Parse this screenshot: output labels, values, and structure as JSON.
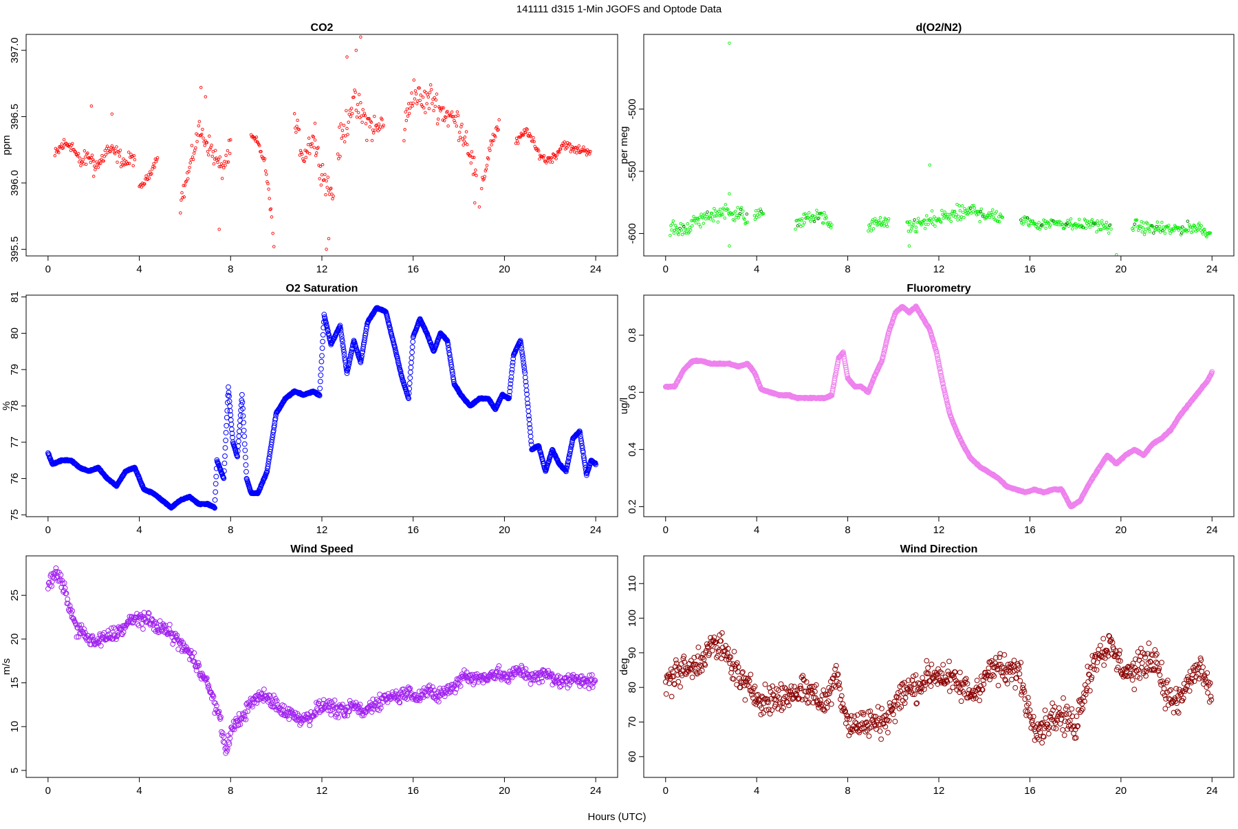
{
  "figure": {
    "title": "141111   d315   1-Min  JGOFS and Optode Data",
    "xlabel": "Hours (UTC)"
  },
  "chart_data": [
    {
      "type": "scatter",
      "title": "CO2",
      "ylabel": "ppm",
      "color": "#ff0000",
      "marker": "small",
      "xlim": [
        -0.96,
        24.96
      ],
      "ylim": [
        395.45,
        397.12
      ],
      "xticks": [
        0,
        4,
        8,
        12,
        16,
        20,
        24
      ],
      "yticks": [
        395.5,
        396.0,
        396.5,
        397.0
      ],
      "ytick_labels": [
        "395.5",
        "396.0",
        "396.5",
        "397.0"
      ],
      "segments": [
        {
          "x": [
            0.3,
            0.6,
            1.0,
            1.4,
            1.8,
            2.2,
            2.6,
            3.0,
            3.4,
            3.8
          ],
          "y": [
            396.2,
            396.28,
            396.3,
            396.15,
            396.2,
            396.13,
            396.25,
            396.22,
            396.15,
            396.2
          ],
          "noise": 0.09,
          "spikes": [
            [
              1.9,
              396.58
            ],
            [
              2.8,
              396.52
            ],
            [
              2.0,
              396.05
            ]
          ]
        },
        {
          "x": [
            4.0,
            4.4,
            4.8
          ],
          "y": [
            395.95,
            396.05,
            396.2
          ],
          "noise": 0.04
        },
        {
          "x": [
            5.8,
            6.2,
            6.6,
            7.0,
            7.3,
            7.6,
            8.0
          ],
          "y": [
            395.85,
            396.1,
            396.4,
            396.3,
            396.2,
            396.1,
            396.25
          ],
          "noise": 0.12,
          "spikes": [
            [
              6.7,
              396.72
            ],
            [
              7.5,
              395.65
            ],
            [
              6.9,
              396.65
            ]
          ]
        },
        {
          "x": [
            8.9,
            9.2,
            9.5,
            9.8
          ],
          "y": [
            396.35,
            396.3,
            396.15,
            395.75
          ],
          "noise": 0.05,
          "spikes": [
            [
              9.9,
              395.52
            ],
            [
              9.85,
              395.62
            ]
          ]
        },
        {
          "x": [
            10.8,
            11.2,
            11.6,
            11.9,
            12.2,
            12.5
          ],
          "y": [
            396.45,
            396.2,
            396.35,
            396.15,
            396.0,
            395.9
          ],
          "noise": 0.14,
          "spikes": [
            [
              12.2,
              395.5
            ],
            [
              12.3,
              395.58
            ],
            [
              11.7,
              396.45
            ]
          ]
        },
        {
          "x": [
            12.7,
            13.0,
            13.3,
            13.6,
            14.0,
            14.4,
            14.7
          ],
          "y": [
            396.25,
            396.4,
            396.6,
            396.55,
            396.45,
            396.4,
            396.45
          ],
          "noise": 0.18,
          "spikes": [
            [
              13.5,
              397.0
            ],
            [
              13.7,
              397.1
            ],
            [
              13.1,
              396.95
            ]
          ]
        },
        {
          "x": [
            15.6,
            16.0,
            16.4,
            16.8,
            17.2,
            17.6,
            18.0,
            18.4,
            18.8
          ],
          "y": [
            396.4,
            396.7,
            396.6,
            396.65,
            396.55,
            396.5,
            396.45,
            396.3,
            396.0
          ],
          "noise": 0.16,
          "spikes": [
            [
              18.9,
              395.82
            ],
            [
              18.7,
              395.85
            ]
          ]
        },
        {
          "x": [
            19.0,
            19.4,
            19.8
          ],
          "y": [
            395.95,
            396.3,
            396.45
          ],
          "noise": 0.08
        },
        {
          "x": [
            20.5,
            21.0,
            21.4,
            21.8,
            22.2,
            22.6,
            23.0,
            23.4,
            23.8
          ],
          "y": [
            396.3,
            396.4,
            396.25,
            396.17,
            396.2,
            396.3,
            396.25,
            396.25,
            396.24
          ],
          "noise": 0.05
        }
      ]
    },
    {
      "type": "scatter",
      "title": "d(O2/N2)",
      "ylabel": "per meg",
      "color": "#00ee00",
      "marker": "small",
      "darkcolor": "#006400",
      "xlim": [
        -0.96,
        24.96
      ],
      "ylim": [
        -618,
        -440
      ],
      "xticks": [
        0,
        4,
        8,
        12,
        16,
        20,
        24
      ],
      "yticks": [
        -600,
        -550,
        -500
      ],
      "ytick_labels": [
        "-600",
        "-550",
        "-500"
      ],
      "segments": [
        {
          "x": [
            0.2,
            0.8,
            1.4,
            2.0,
            2.6,
            3.2,
            3.6
          ],
          "y": [
            -598,
            -596,
            -590,
            -585,
            -582,
            -584,
            -588
          ],
          "noise": 9,
          "spikes": [
            [
              2.8,
              -447
            ],
            [
              2.8,
              -568
            ],
            [
              2.8,
              -610
            ]
          ]
        },
        {
          "x": [
            3.9,
            4.3
          ],
          "y": [
            -586,
            -583
          ],
          "noise": 7
        },
        {
          "x": [
            5.7,
            6.2,
            6.8,
            7.3
          ],
          "y": [
            -592,
            -588,
            -585,
            -595
          ],
          "noise": 8
        },
        {
          "x": [
            8.9,
            9.3,
            9.8
          ],
          "y": [
            -596,
            -590,
            -593
          ],
          "noise": 7
        },
        {
          "x": [
            10.6,
            11.2,
            11.8,
            12.4,
            13.0,
            13.6,
            14.2,
            14.8
          ],
          "y": [
            -596,
            -592,
            -590,
            -586,
            -584,
            -582,
            -585,
            -586
          ],
          "noise": 10,
          "spikes": [
            [
              10.7,
              -610
            ],
            [
              11.6,
              -545
            ]
          ]
        },
        {
          "x": [
            15.6,
            16.4,
            17.2,
            18.0,
            18.8,
            19.6
          ],
          "y": [
            -590,
            -592,
            -591,
            -593,
            -592,
            -597
          ],
          "noise": 7,
          "spikes": [
            [
              19.8,
              -617
            ]
          ]
        },
        {
          "x": [
            20.5,
            21.2,
            22.0,
            22.8,
            23.5,
            23.95
          ],
          "y": [
            -593,
            -596,
            -597,
            -596,
            -595,
            -601
          ],
          "noise": 7
        }
      ]
    },
    {
      "type": "line-scatter",
      "title": "O2 Saturation",
      "ylabel": "%",
      "color": "#0000ff",
      "marker": "large",
      "xlim": [
        -0.96,
        24.96
      ],
      "ylim": [
        74.95,
        81.05
      ],
      "xticks": [
        0,
        4,
        8,
        12,
        16,
        20,
        24
      ],
      "yticks": [
        75,
        76,
        77,
        78,
        79,
        80,
        81
      ],
      "ytick_labels": [
        "75",
        "76",
        "77",
        "78",
        "79",
        "80",
        "81"
      ],
      "series": {
        "x": [
          0.0,
          0.2,
          0.6,
          1.0,
          1.4,
          1.8,
          2.2,
          2.6,
          3.0,
          3.4,
          3.8,
          4.2,
          4.6,
          5.0,
          5.4,
          5.8,
          6.2,
          6.6,
          7.0,
          7.3,
          7.4,
          7.7,
          7.9,
          8.1,
          8.3,
          8.5,
          8.7,
          8.9,
          9.2,
          9.6,
          10.0,
          10.4,
          10.8,
          11.2,
          11.6,
          11.9,
          12.1,
          12.4,
          12.8,
          13.1,
          13.4,
          13.7,
          14.0,
          14.4,
          14.8,
          15.2,
          15.5,
          15.8,
          16.0,
          16.3,
          16.6,
          16.9,
          17.2,
          17.5,
          17.8,
          18.1,
          18.5,
          18.9,
          19.3,
          19.6,
          19.9,
          20.2,
          20.4,
          20.7,
          20.9,
          21.2,
          21.5,
          21.8,
          22.1,
          22.4,
          22.7,
          23.0,
          23.3,
          23.6,
          23.8,
          24.0
        ],
        "y": [
          76.7,
          76.4,
          76.5,
          76.5,
          76.3,
          76.2,
          76.3,
          76.0,
          75.8,
          76.2,
          76.3,
          75.7,
          75.6,
          75.4,
          75.2,
          75.4,
          75.5,
          75.3,
          75.3,
          75.2,
          76.5,
          76.0,
          78.5,
          77.0,
          76.6,
          78.3,
          76.0,
          75.6,
          75.6,
          76.2,
          77.8,
          78.2,
          78.4,
          78.3,
          78.4,
          78.3,
          80.5,
          79.7,
          80.2,
          78.9,
          79.8,
          79.2,
          80.3,
          80.7,
          80.6,
          79.6,
          78.8,
          78.2,
          79.9,
          80.4,
          80.0,
          79.5,
          80.0,
          79.8,
          78.6,
          78.3,
          78.0,
          78.2,
          78.2,
          77.9,
          78.3,
          78.2,
          79.4,
          79.8,
          78.9,
          76.8,
          76.9,
          76.2,
          76.8,
          76.4,
          76.2,
          77.1,
          77.3,
          76.1,
          76.5,
          76.4
        ]
      }
    },
    {
      "type": "line-scatter",
      "title": "Fluorometry",
      "ylabel": "ug/l",
      "color": "#ee82ee",
      "marker": "large",
      "xlim": [
        -0.96,
        24.96
      ],
      "ylim": [
        0.165,
        0.94
      ],
      "xticks": [
        0,
        4,
        8,
        12,
        16,
        20,
        24
      ],
      "yticks": [
        0.2,
        0.4,
        0.6,
        0.8
      ],
      "ytick_labels": [
        "0.2",
        "0.4",
        "0.6",
        "0.8"
      ],
      "series": {
        "x": [
          0.0,
          0.4,
          0.8,
          1.2,
          1.6,
          2.0,
          2.4,
          2.8,
          3.2,
          3.6,
          3.9,
          4.2,
          4.6,
          5.0,
          5.4,
          5.8,
          6.2,
          6.6,
          7.0,
          7.3,
          7.6,
          7.8,
          8.0,
          8.3,
          8.6,
          8.9,
          9.2,
          9.5,
          9.8,
          10.1,
          10.4,
          10.7,
          11.0,
          11.3,
          11.6,
          11.9,
          12.2,
          12.5,
          12.8,
          13.1,
          13.4,
          13.8,
          14.2,
          14.6,
          15.0,
          15.4,
          15.8,
          16.2,
          16.6,
          17.0,
          17.4,
          17.8,
          18.2,
          18.6,
          19.0,
          19.4,
          19.8,
          20.2,
          20.6,
          21.0,
          21.4,
          21.8,
          22.2,
          22.6,
          23.0,
          23.4,
          23.8,
          24.0
        ],
        "y": [
          0.62,
          0.62,
          0.68,
          0.71,
          0.71,
          0.7,
          0.7,
          0.7,
          0.69,
          0.7,
          0.67,
          0.61,
          0.6,
          0.59,
          0.59,
          0.58,
          0.58,
          0.58,
          0.58,
          0.59,
          0.72,
          0.74,
          0.65,
          0.62,
          0.62,
          0.6,
          0.66,
          0.71,
          0.81,
          0.88,
          0.9,
          0.88,
          0.9,
          0.86,
          0.82,
          0.74,
          0.62,
          0.52,
          0.46,
          0.41,
          0.37,
          0.34,
          0.32,
          0.3,
          0.27,
          0.26,
          0.25,
          0.26,
          0.25,
          0.26,
          0.26,
          0.2,
          0.22,
          0.28,
          0.33,
          0.38,
          0.35,
          0.38,
          0.4,
          0.38,
          0.42,
          0.44,
          0.47,
          0.52,
          0.56,
          0.6,
          0.64,
          0.67
        ]
      }
    },
    {
      "type": "scatter",
      "title": "Wind Speed",
      "ylabel": "m/s",
      "color": "#a020f0",
      "marker": "large",
      "xlim": [
        -0.96,
        24.96
      ],
      "ylim": [
        4.2,
        29.5
      ],
      "xticks": [
        0,
        4,
        8,
        12,
        16,
        20,
        24
      ],
      "yticks": [
        5,
        10,
        15,
        20,
        25
      ],
      "ytick_labels": [
        "5",
        "10",
        "15",
        "20",
        "25"
      ],
      "series": {
        "x": [
          0.0,
          0.3,
          0.6,
          0.9,
          1.2,
          1.6,
          2.0,
          2.4,
          2.8,
          3.2,
          3.6,
          4.0,
          4.4,
          4.8,
          5.2,
          5.6,
          6.0,
          6.4,
          6.8,
          7.1,
          7.4,
          7.6,
          7.8,
          8.0,
          8.3,
          8.6,
          9.0,
          9.4,
          9.8,
          10.2,
          10.6,
          11.0,
          11.4,
          11.8,
          12.2,
          12.6,
          13.0,
          13.4,
          13.8,
          14.2,
          14.6,
          15.0,
          15.4,
          15.8,
          16.2,
          16.6,
          17.0,
          17.4,
          17.8,
          18.2,
          18.6,
          19.0,
          19.4,
          19.8,
          20.2,
          20.6,
          21.0,
          21.4,
          21.8,
          22.2,
          22.6,
          23.0,
          23.4,
          23.8,
          24.0
        ],
        "y": [
          26.0,
          27.5,
          26.5,
          24.0,
          21.5,
          20.5,
          19.5,
          20.0,
          20.5,
          21.0,
          22.0,
          22.5,
          22.0,
          21.5,
          21.0,
          20.0,
          19.0,
          17.5,
          16.0,
          14.0,
          12.0,
          10.0,
          7.0,
          9.5,
          10.5,
          11.5,
          13.0,
          13.5,
          13.0,
          12.0,
          11.5,
          11.0,
          11.0,
          12.0,
          12.5,
          12.0,
          11.5,
          12.5,
          11.5,
          12.5,
          13.0,
          13.5,
          13.5,
          14.0,
          13.5,
          14.0,
          13.5,
          14.0,
          14.5,
          16.0,
          15.5,
          15.5,
          16.0,
          16.0,
          15.5,
          16.5,
          16.0,
          15.5,
          16.0,
          15.5,
          15.0,
          15.5,
          15.5,
          15.0,
          15.5
        ]
      },
      "noise": 1.2
    },
    {
      "type": "scatter",
      "title": "Wind Direction",
      "ylabel": "deg",
      "color": "#8b0000",
      "marker": "large",
      "xlim": [
        -0.96,
        24.96
      ],
      "ylim": [
        54,
        118
      ],
      "xticks": [
        0,
        4,
        8,
        12,
        16,
        20,
        24
      ],
      "yticks": [
        60,
        70,
        80,
        90,
        100,
        110
      ],
      "ytick_labels": [
        "60",
        "70",
        "80",
        "90",
        "100",
        "110"
      ],
      "series": {
        "x": [
          0.0,
          0.5,
          1.0,
          1.5,
          2.0,
          2.5,
          3.0,
          3.5,
          4.0,
          4.5,
          5.0,
          5.5,
          6.0,
          6.5,
          7.0,
          7.5,
          8.0,
          8.5,
          9.0,
          9.5,
          10.0,
          10.5,
          11.0,
          11.5,
          12.0,
          12.5,
          13.0,
          13.5,
          14.0,
          14.5,
          15.0,
          15.5,
          16.0,
          16.5,
          17.0,
          17.5,
          18.0,
          18.5,
          19.0,
          19.5,
          20.0,
          20.5,
          21.0,
          21.5,
          22.0,
          22.5,
          23.0,
          23.5,
          24.0
        ],
        "y": [
          80,
          85,
          85,
          88,
          92,
          91,
          86,
          80,
          78,
          76,
          77,
          78,
          80,
          78,
          75,
          84,
          70,
          69,
          70,
          70,
          74,
          79,
          80,
          83,
          84,
          82,
          80,
          78,
          83,
          86,
          84,
          85,
          72,
          68,
          72,
          71,
          69,
          82,
          90,
          92,
          86,
          84,
          87,
          89,
          78,
          75,
          82,
          86,
          77
        ]
      },
      "noise": 6.5
    }
  ]
}
